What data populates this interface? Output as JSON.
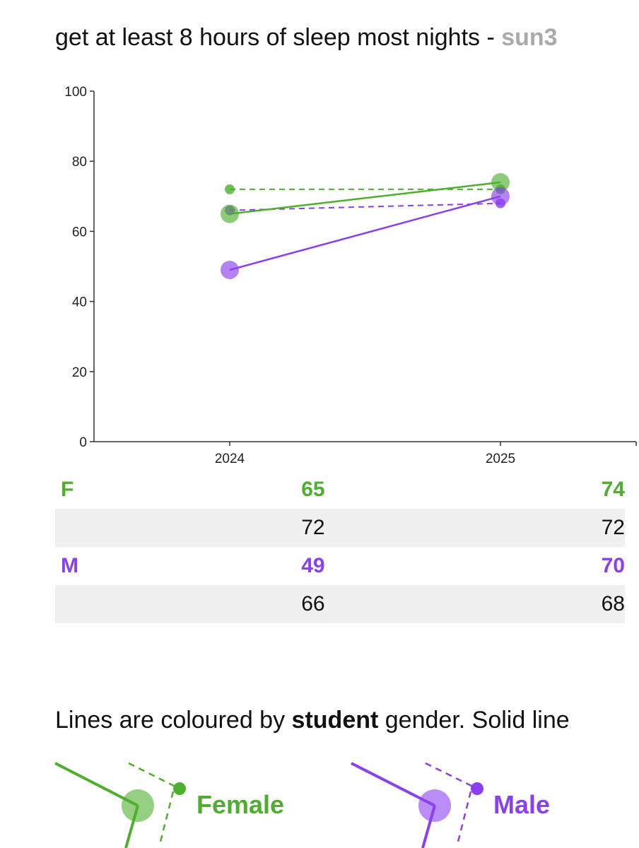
{
  "title": {
    "text": "get at least 8 hours of sleep most nights - ",
    "code": "sun3"
  },
  "colors": {
    "female": "#4eaf2e",
    "male": "#8a3ff0"
  },
  "chart_data": {
    "type": "line",
    "categories": [
      "2024",
      "2025"
    ],
    "ylim": [
      0,
      100
    ],
    "yticks": [
      "0",
      "20",
      "40",
      "60",
      "80",
      "100"
    ],
    "series": [
      {
        "name": "F",
        "style": "solid",
        "color": "#4eaf2e",
        "values": [
          65,
          74
        ]
      },
      {
        "name": "",
        "style": "dashed",
        "color": "#4eaf2e",
        "values": [
          72,
          72
        ]
      },
      {
        "name": "M",
        "style": "solid",
        "color": "#8a3ff0",
        "values": [
          49,
          70
        ]
      },
      {
        "name": "",
        "style": "dashed",
        "color": "#8a3ff0",
        "values": [
          66,
          68
        ]
      }
    ]
  },
  "table": {
    "rows": [
      {
        "label": "F",
        "v1": "65",
        "v2": "74"
      },
      {
        "label": "",
        "v1": "72",
        "v2": "72"
      },
      {
        "label": "M",
        "v1": "49",
        "v2": "70"
      },
      {
        "label": "",
        "v1": "66",
        "v2": "68"
      }
    ]
  },
  "caption": {
    "before": "Lines are coloured by ",
    "bold": "student",
    "after": " gender. Solid line"
  },
  "legend": {
    "female": "Female",
    "male": "Male"
  }
}
